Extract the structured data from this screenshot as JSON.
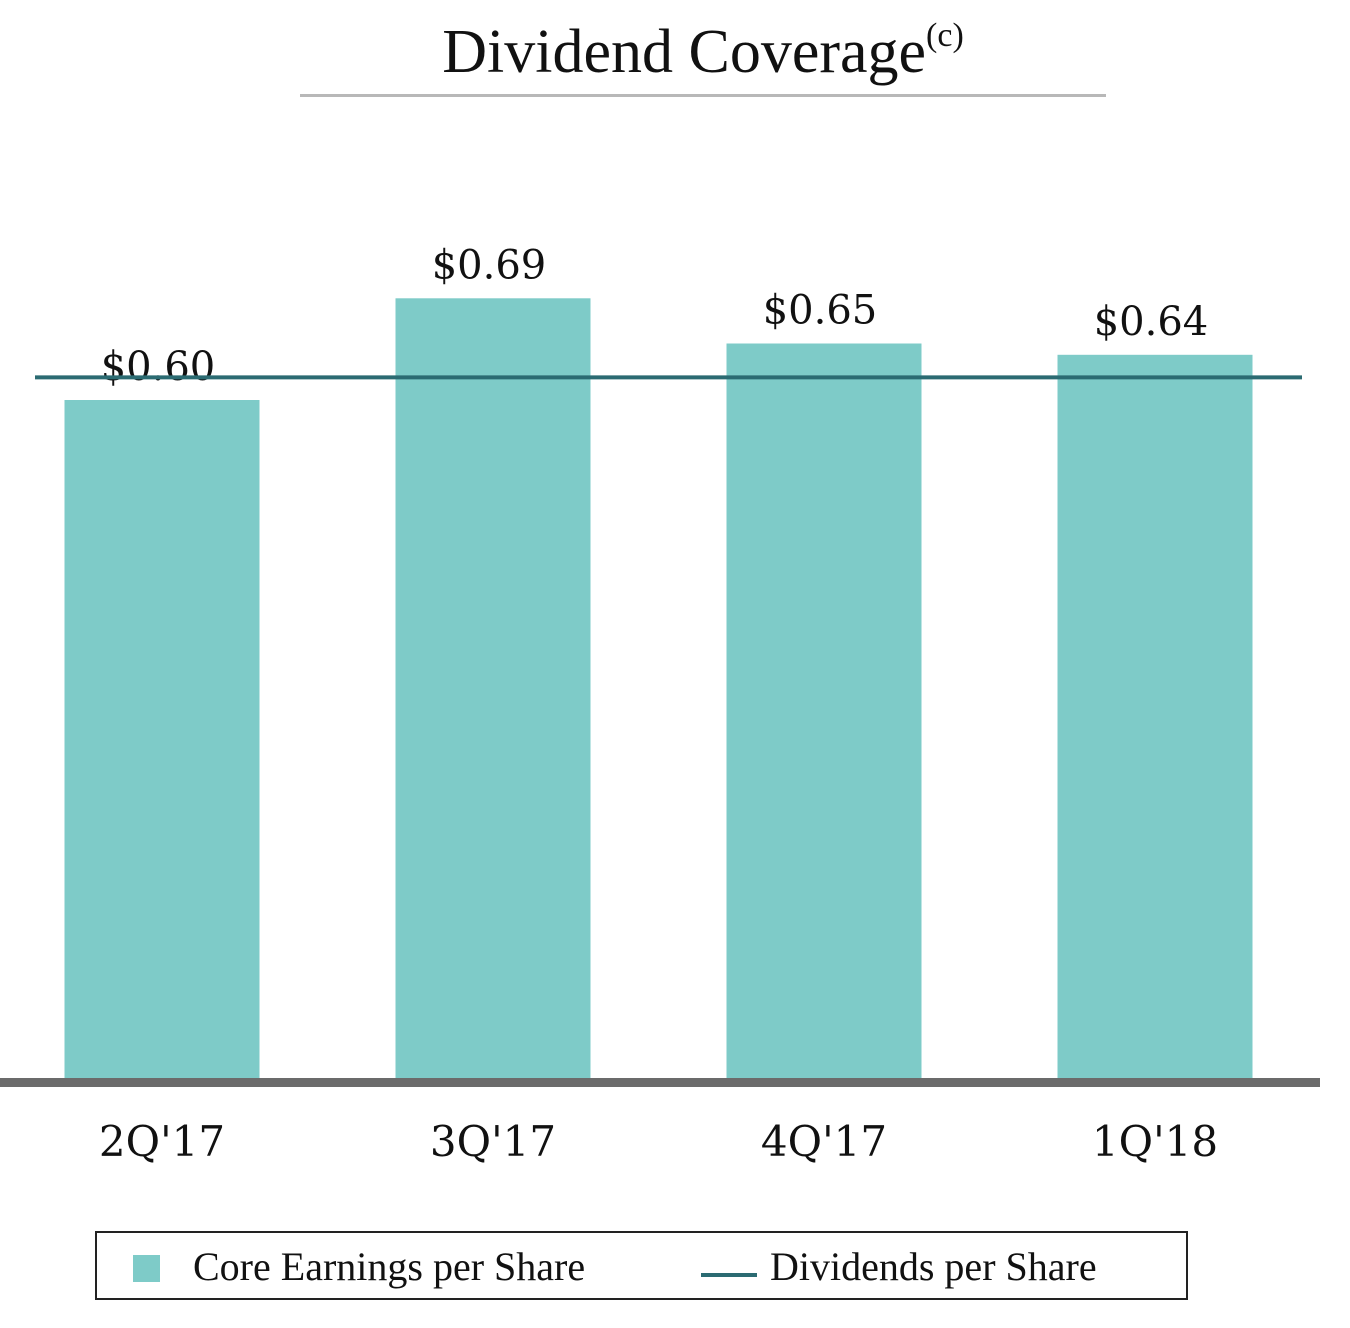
{
  "title": "Dividend Coverage",
  "title_superscript": "(c)",
  "colors": {
    "bar": "#7ecbc8",
    "dividend_line": "#2b6b72",
    "axis": "#6b6b6b"
  },
  "chart_data": {
    "type": "bar",
    "categories": [
      "2Q'17",
      "3Q'17",
      "4Q'17",
      "1Q'18"
    ],
    "series": [
      {
        "name": "Core Earnings per Share",
        "values": [
          0.6,
          0.69,
          0.65,
          0.64
        ],
        "labels": [
          "$0.60",
          "$0.69",
          "$0.65",
          "$0.64"
        ]
      },
      {
        "name": "Dividends per Share",
        "type": "line",
        "value": 0.62
      }
    ],
    "title": "Dividend Coverage",
    "xlabel": "",
    "ylabel": "",
    "ylim": [
      0,
      0.8
    ],
    "grid": false,
    "legend": "bottom"
  },
  "legend": {
    "items": [
      {
        "label": "Core Earnings per Share",
        "icon": "square-swatch"
      },
      {
        "label": "Dividends per Share",
        "icon": "line-swatch"
      }
    ]
  }
}
